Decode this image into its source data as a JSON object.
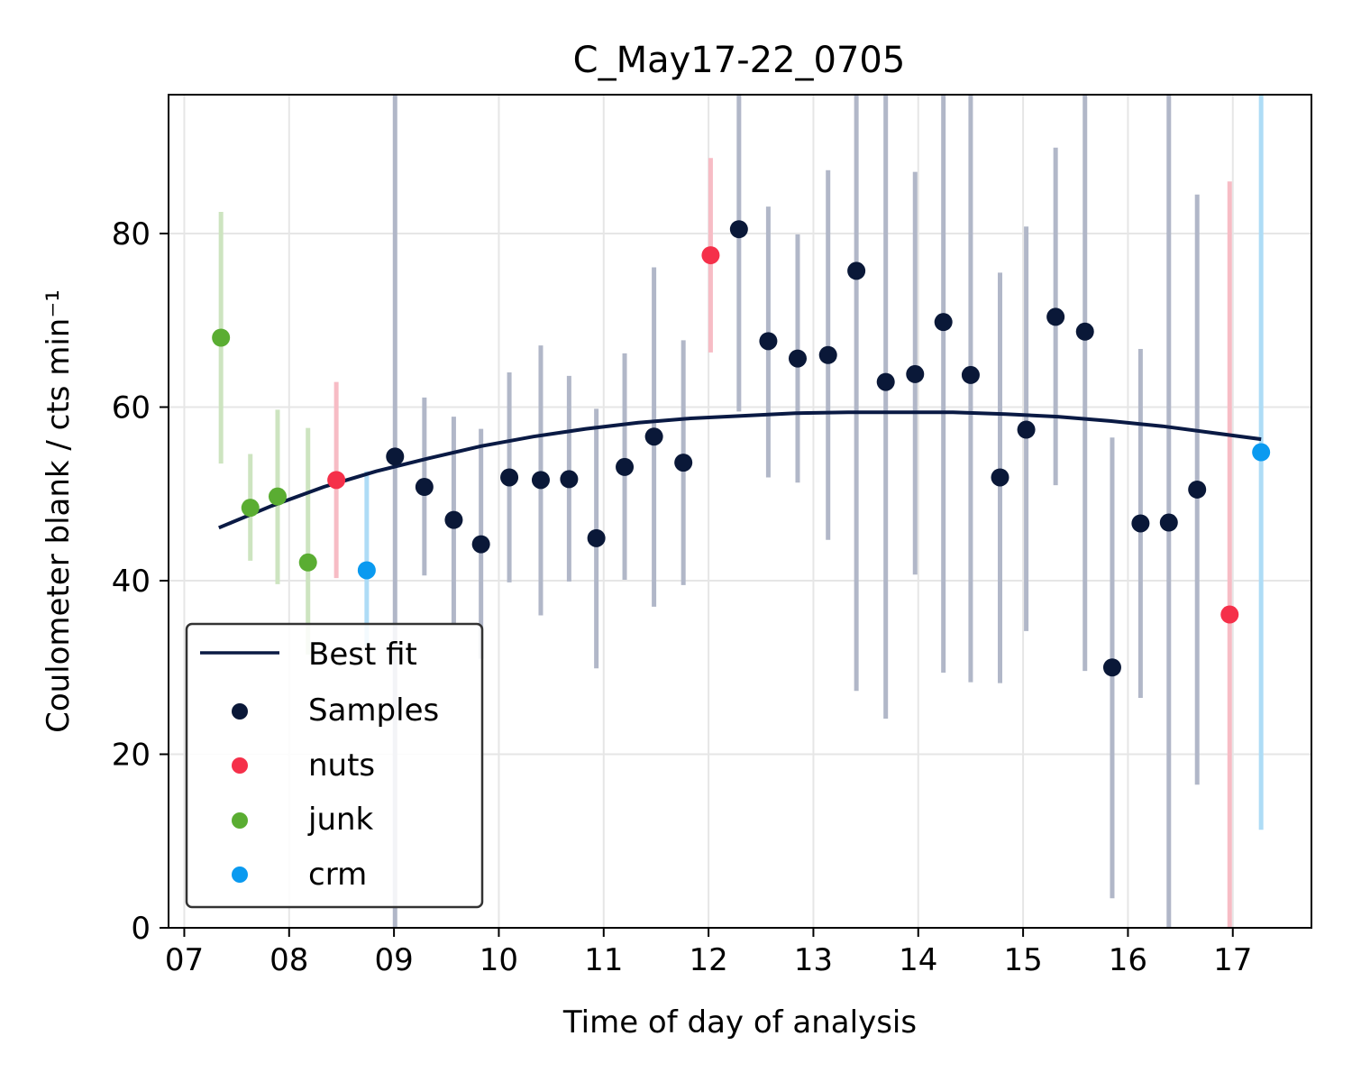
{
  "chart_data": {
    "type": "scatter",
    "title": "C_May17-22_0705",
    "xlabel": "Time of day of analysis",
    "ylabel": "Coulometer blank / cts min⁻¹",
    "xlim": [
      6.85,
      17.75
    ],
    "ylim": [
      0,
      96
    ],
    "xticks": [
      7,
      8,
      9,
      10,
      11,
      12,
      13,
      14,
      15,
      16,
      17
    ],
    "xtick_labels": [
      "07",
      "08",
      "09",
      "10",
      "11",
      "12",
      "13",
      "14",
      "15",
      "16",
      "17"
    ],
    "yticks": [
      0,
      20,
      40,
      60,
      80
    ],
    "ytick_labels": [
      "0",
      "20",
      "40",
      "60",
      "80"
    ],
    "grid": true,
    "legend_position": "lower-left",
    "legend": [
      "Best fit",
      "Samples",
      "nuts",
      "junk",
      "crm"
    ],
    "colors": {
      "fit": "#0a1a44",
      "Samples": "#0a1838",
      "nuts": "#f5304a",
      "junk": "#5aad32",
      "crm": "#0a9af0",
      "Samples_err": "#b1b7c8",
      "nuts_err": "#f7bcc5",
      "junk_err": "#cde4c0",
      "crm_err": "#aedcf6"
    },
    "best_fit": {
      "x": [
        7.33,
        7.83,
        8.33,
        8.83,
        9.33,
        9.83,
        10.33,
        10.83,
        11.33,
        11.83,
        12.33,
        12.83,
        13.33,
        13.83,
        14.33,
        14.83,
        15.33,
        15.83,
        16.33,
        16.83,
        17.27
      ],
      "y": [
        46.1,
        48.6,
        50.8,
        52.6,
        54.1,
        55.5,
        56.6,
        57.5,
        58.2,
        58.7,
        59.0,
        59.3,
        59.4,
        59.4,
        59.4,
        59.2,
        58.9,
        58.4,
        57.8,
        57.0,
        56.3
      ]
    },
    "series": [
      {
        "name": "Samples",
        "x": [
          9.01,
          9.29,
          9.57,
          9.83,
          10.1,
          10.4,
          10.67,
          10.93,
          11.2,
          11.48,
          11.76,
          12.29,
          12.57,
          12.85,
          13.14,
          13.41,
          13.69,
          13.97,
          14.24,
          14.5,
          14.78,
          15.03,
          15.31,
          15.59,
          15.85,
          16.12,
          16.39,
          16.66
        ],
        "y": [
          54.3,
          50.8,
          47.0,
          44.2,
          51.9,
          51.6,
          51.7,
          44.9,
          53.1,
          56.6,
          53.6,
          80.5,
          67.6,
          65.6,
          66.0,
          75.7,
          62.9,
          63.8,
          69.8,
          63.7,
          51.9,
          57.4,
          70.4,
          68.7,
          30.0,
          46.6,
          46.7,
          50.5
        ],
        "err_low": [
          0,
          40.6,
          35.0,
          31.0,
          39.8,
          36.0,
          39.9,
          29.9,
          40.1,
          37.0,
          39.5,
          59.5,
          51.9,
          51.3,
          44.7,
          27.3,
          24.1,
          40.7,
          29.4,
          28.3,
          28.2,
          34.2,
          51.0,
          29.6,
          3.4,
          26.5,
          0,
          16.5
        ],
        "err_high": [
          96,
          61.1,
          58.9,
          57.5,
          64.0,
          67.1,
          63.6,
          59.8,
          66.2,
          76.1,
          67.7,
          96,
          83.1,
          79.9,
          87.3,
          96,
          96,
          87.1,
          96,
          96,
          75.5,
          80.8,
          89.9,
          96,
          56.5,
          66.7,
          96,
          84.5
        ]
      },
      {
        "name": "nuts",
        "x": [
          8.45,
          12.02,
          16.97
        ],
        "y": [
          51.6,
          77.5,
          36.1
        ],
        "err_low": [
          40.3,
          66.3,
          0
        ],
        "err_high": [
          62.9,
          88.7,
          86.0
        ]
      },
      {
        "name": "junk",
        "x": [
          7.35,
          7.63,
          7.89,
          8.18
        ],
        "y": [
          68.0,
          48.4,
          49.7,
          42.1
        ],
        "err_low": [
          53.5,
          42.3,
          39.6,
          31.5
        ],
        "err_high": [
          82.5,
          54.6,
          59.7,
          57.6
        ]
      },
      {
        "name": "crm",
        "x": [
          8.74,
          17.27
        ],
        "y": [
          41.2,
          54.8
        ],
        "err_low": [
          32.5,
          11.3
        ],
        "err_high": [
          52.6,
          96
        ]
      }
    ]
  }
}
